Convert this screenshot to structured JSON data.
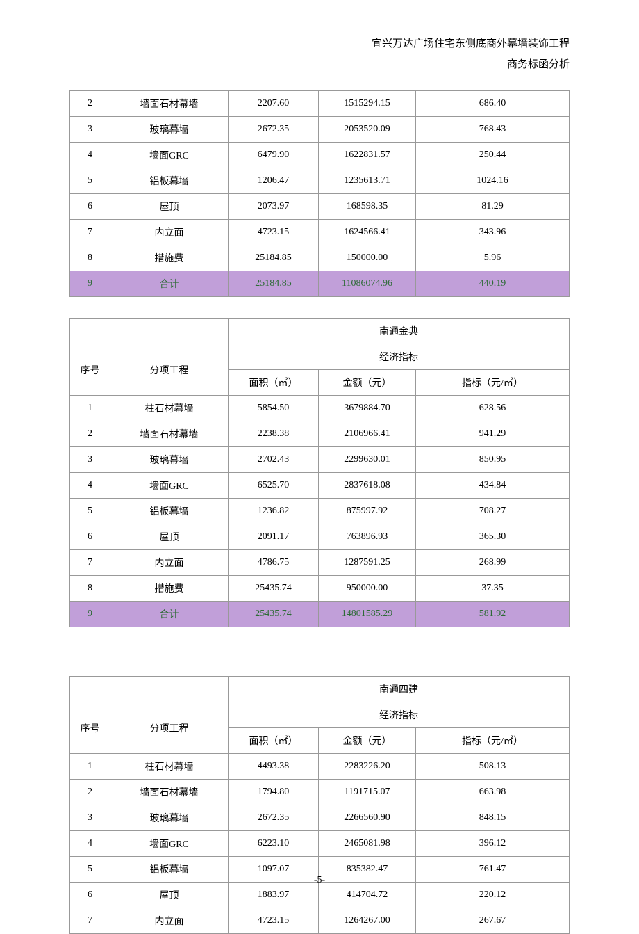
{
  "header": {
    "title_line1": "宜兴万达广场住宅东侧底商外幕墙装饰工程",
    "title_line2": "商务标函分析"
  },
  "colors": {
    "total_row_bg": "#c19fd9",
    "total_row_text": "#2e6b37",
    "border": "#999999"
  },
  "page_number": "-5-",
  "table1": {
    "rows": [
      {
        "idx": "2",
        "name": "墙面石材幕墙",
        "area": "2207.60",
        "amount": "1515294.15",
        "unit": "686.40"
      },
      {
        "idx": "3",
        "name": "玻璃幕墙",
        "area": "2672.35",
        "amount": "2053520.09",
        "unit": "768.43"
      },
      {
        "idx": "4",
        "name": "墙面GRC",
        "area": "6479.90",
        "amount": "1622831.57",
        "unit": "250.44"
      },
      {
        "idx": "5",
        "name": "铝板幕墙",
        "area": "1206.47",
        "amount": "1235613.71",
        "unit": "1024.16"
      },
      {
        "idx": "6",
        "name": "屋顶",
        "area": "2073.97",
        "amount": "168598.35",
        "unit": "81.29"
      },
      {
        "idx": "7",
        "name": "内立面",
        "area": "4723.15",
        "amount": "1624566.41",
        "unit": "343.96"
      },
      {
        "idx": "8",
        "name": "措施费",
        "area": "25184.85",
        "amount": "150000.00",
        "unit": "5.96"
      }
    ],
    "total": {
      "idx": "9",
      "name": "合计",
      "area": "25184.85",
      "amount": "11086074.96",
      "unit": "440.19"
    }
  },
  "table2": {
    "company": "南通金典",
    "group_label": "经济指标",
    "col_idx": "序号",
    "col_name": "分项工程",
    "col_area": "面积（㎡）",
    "col_amount": "金额（元）",
    "col_unit": "指标（元/㎡）",
    "rows": [
      {
        "idx": "1",
        "name": "柱石材幕墙",
        "area": "5854.50",
        "amount": "3679884.70",
        "unit": "628.56"
      },
      {
        "idx": "2",
        "name": "墙面石材幕墙",
        "area": "2238.38",
        "amount": "2106966.41",
        "unit": "941.29"
      },
      {
        "idx": "3",
        "name": "玻璃幕墙",
        "area": "2702.43",
        "amount": "2299630.01",
        "unit": "850.95"
      },
      {
        "idx": "4",
        "name": "墙面GRC",
        "area": "6525.70",
        "amount": "2837618.08",
        "unit": "434.84"
      },
      {
        "idx": "5",
        "name": "铝板幕墙",
        "area": "1236.82",
        "amount": "875997.92",
        "unit": "708.27"
      },
      {
        "idx": "6",
        "name": "屋顶",
        "area": "2091.17",
        "amount": "763896.93",
        "unit": "365.30"
      },
      {
        "idx": "7",
        "name": "内立面",
        "area": "4786.75",
        "amount": "1287591.25",
        "unit": "268.99"
      },
      {
        "idx": "8",
        "name": "措施费",
        "area": "25435.74",
        "amount": "950000.00",
        "unit": "37.35"
      }
    ],
    "total": {
      "idx": "9",
      "name": "合计",
      "area": "25435.74",
      "amount": "14801585.29",
      "unit": "581.92"
    }
  },
  "table3": {
    "company": "南通四建",
    "group_label": "经济指标",
    "col_idx": "序号",
    "col_name": "分项工程",
    "col_area": "面积（㎡）",
    "col_amount": "金额（元）",
    "col_unit": "指标（元/㎡）",
    "rows": [
      {
        "idx": "1",
        "name": "柱石材幕墙",
        "area": "4493.38",
        "amount": "2283226.20",
        "unit": "508.13"
      },
      {
        "idx": "2",
        "name": "墙面石材幕墙",
        "area": "1794.80",
        "amount": "1191715.07",
        "unit": "663.98"
      },
      {
        "idx": "3",
        "name": "玻璃幕墙",
        "area": "2672.35",
        "amount": "2266560.90",
        "unit": "848.15"
      },
      {
        "idx": "4",
        "name": "墙面GRC",
        "area": "6223.10",
        "amount": "2465081.98",
        "unit": "396.12"
      },
      {
        "idx": "5",
        "name": "铝板幕墙",
        "area": "1097.07",
        "amount": "835382.47",
        "unit": "761.47"
      },
      {
        "idx": "6",
        "name": "屋顶",
        "area": "1883.97",
        "amount": "414704.72",
        "unit": "220.12"
      },
      {
        "idx": "7",
        "name": "内立面",
        "area": "4723.15",
        "amount": "1264267.00",
        "unit": "267.67"
      }
    ]
  }
}
